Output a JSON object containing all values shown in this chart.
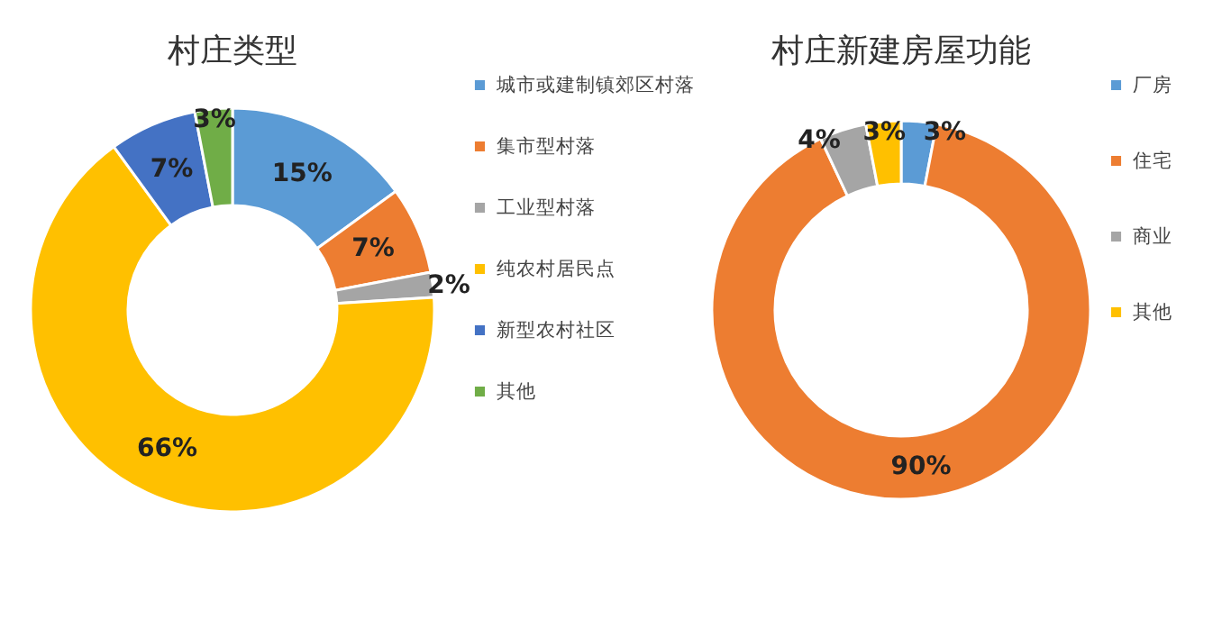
{
  "chart_data": [
    {
      "type": "donut",
      "title": "村庄类型",
      "categories": [
        "城市或建制镇郊区村落",
        "集市型村落",
        "工业型村落",
        "纯农村居民点",
        "新型农村社区",
        "其他"
      ],
      "values": [
        15,
        7,
        2,
        66,
        7,
        3
      ],
      "colors": [
        "#5b9bd5",
        "#ed7d31",
        "#a5a5a5",
        "#ffc000",
        "#4472c4",
        "#70ad47"
      ],
      "value_labels": [
        "15%",
        "7%",
        "2%",
        "66%",
        "7%",
        "3%"
      ],
      "legend": "right"
    },
    {
      "type": "donut",
      "title": "村庄新建房屋功能",
      "categories": [
        "厂房",
        "住宅",
        "商业",
        "其他"
      ],
      "values": [
        3,
        90,
        4,
        3
      ],
      "colors": [
        "#5b9bd5",
        "#ed7d31",
        "#a5a5a5",
        "#ffc000"
      ],
      "value_labels": [
        "3%",
        "90%",
        "4%",
        "3%"
      ],
      "legend": "right"
    }
  ]
}
